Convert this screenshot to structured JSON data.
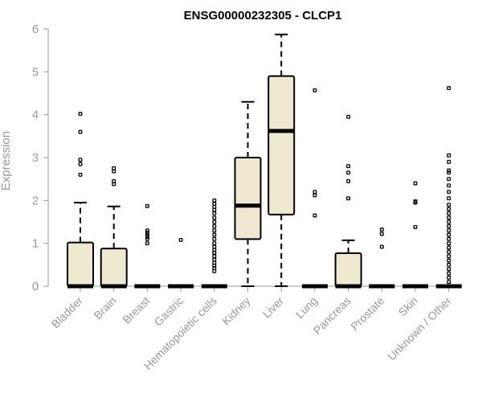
{
  "chart_data": {
    "type": "boxplot",
    "title": "ENSG00000232305 - CLCP1",
    "xlabel": "",
    "ylabel": "Expression",
    "ylim": [
      0,
      6
    ],
    "yticks": [
      0,
      1,
      2,
      3,
      4,
      5,
      6
    ],
    "grid": false,
    "box_fill": "#EFE8D0",
    "box_stroke": "#000000",
    "outlier_color": "#000000",
    "axis_color": "#999999",
    "categories": [
      "Bladder",
      "Brain",
      "Breast",
      "Gastric",
      "Hematopoietic cells",
      "Kidney",
      "Liver",
      "Lung",
      "Pancreas",
      "Prostate",
      "Skin",
      "Unknown / Other"
    ],
    "boxes": [
      {
        "q1": 0,
        "median": 0,
        "q3": 1.02,
        "whisker_low": 0,
        "whisker_high": 1.95,
        "outliers": [
          2.6,
          2.85,
          2.95,
          3.6,
          4.02
        ]
      },
      {
        "q1": 0,
        "median": 0,
        "q3": 0.88,
        "whisker_low": 0,
        "whisker_high": 1.86,
        "outliers": [
          2.38,
          2.45,
          2.68,
          2.75
        ]
      },
      {
        "q1": 0,
        "median": 0,
        "q3": 0,
        "whisker_low": 0,
        "whisker_high": 0,
        "outliers": [
          1.0,
          1.1,
          1.15,
          1.2,
          1.25,
          1.3,
          1.87
        ]
      },
      {
        "q1": 0,
        "median": 0,
        "q3": 0,
        "whisker_low": 0,
        "whisker_high": 0,
        "outliers": [
          1.08
        ]
      },
      {
        "q1": 0,
        "median": 0,
        "q3": 0,
        "whisker_low": 0,
        "whisker_high": 0,
        "outliers": [
          0.35,
          0.42,
          0.48,
          0.55,
          0.62,
          0.7,
          0.78,
          0.85,
          0.92,
          1.0,
          1.1,
          1.2,
          1.3,
          1.4,
          1.5,
          1.6,
          1.7,
          1.78,
          1.85,
          1.92,
          2.0
        ]
      },
      {
        "q1": 1.1,
        "median": 1.88,
        "q3": 3.0,
        "whisker_low": 0,
        "whisker_high": 4.3,
        "outliers": []
      },
      {
        "q1": 1.67,
        "median": 3.62,
        "q3": 4.9,
        "whisker_low": 0,
        "whisker_high": 5.87,
        "outliers": []
      },
      {
        "q1": 0,
        "median": 0,
        "q3": 0,
        "whisker_low": 0,
        "whisker_high": 0,
        "outliers": [
          1.65,
          2.12,
          2.2,
          4.57
        ]
      },
      {
        "q1": 0,
        "median": 0,
        "q3": 0.77,
        "whisker_low": 0,
        "whisker_high": 1.07,
        "outliers": [
          2.05,
          2.45,
          2.65,
          2.8,
          3.95
        ]
      },
      {
        "q1": 0,
        "median": 0,
        "q3": 0,
        "whisker_low": 0,
        "whisker_high": 0,
        "outliers": [
          0.92,
          1.22,
          1.32
        ]
      },
      {
        "q1": 0,
        "median": 0,
        "q3": 0,
        "whisker_low": 0,
        "whisker_high": 0,
        "outliers": [
          1.38,
          1.95,
          1.98,
          2.4
        ]
      },
      {
        "q1": 0,
        "median": 0,
        "q3": 0,
        "whisker_low": 0,
        "whisker_high": 0,
        "outliers": [
          0.1,
          0.2,
          0.3,
          0.4,
          0.5,
          0.6,
          0.7,
          0.8,
          0.9,
          1.0,
          1.1,
          1.2,
          1.3,
          1.4,
          1.5,
          1.6,
          1.7,
          1.8,
          1.9,
          2.05,
          2.2,
          2.35,
          2.5,
          2.65,
          2.7,
          2.9,
          3.05,
          4.62
        ]
      }
    ]
  }
}
